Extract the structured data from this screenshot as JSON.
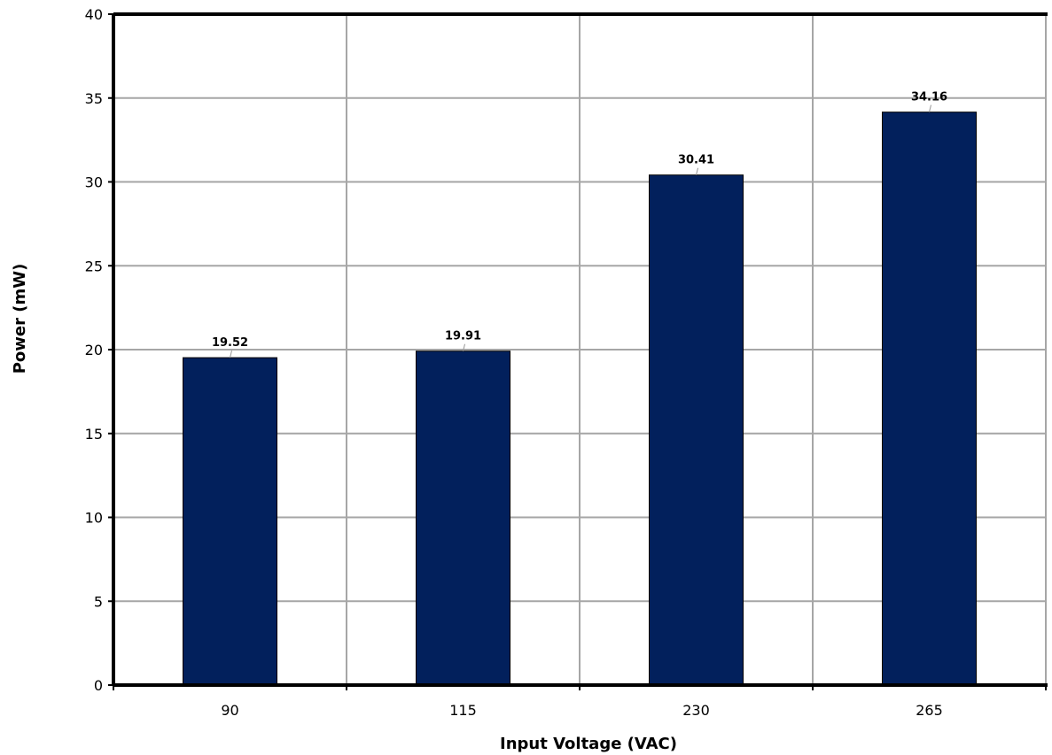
{
  "chart_data": {
    "type": "bar",
    "categories": [
      "90",
      "115",
      "230",
      "265"
    ],
    "values": [
      19.52,
      19.91,
      30.41,
      34.16
    ],
    "value_labels": [
      "19.52",
      "19.91",
      "30.41",
      "34.16"
    ],
    "title": "",
    "xlabel": "Input Voltage (VAC)",
    "ylabel": "Power (mW)",
    "ylim": [
      0,
      40
    ],
    "yticks": [
      0,
      5,
      10,
      15,
      20,
      25,
      30,
      35,
      40
    ],
    "grid": true,
    "legend": "none",
    "colors": {
      "bar": "#02205c",
      "grid": "#a6a6a6",
      "axis": "#000000"
    }
  }
}
